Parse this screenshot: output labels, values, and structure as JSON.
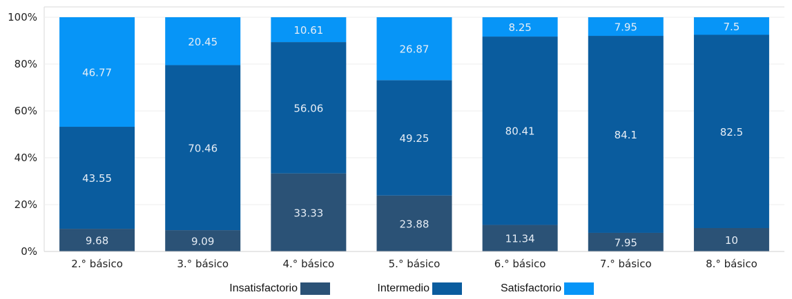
{
  "chart_data": {
    "type": "bar",
    "stacked": true,
    "percent": true,
    "categories": [
      "2.° básico",
      "3.° básico",
      "4.° básico",
      "5.° básico",
      "6.° básico",
      "7.° básico",
      "8.° básico"
    ],
    "series": [
      {
        "name": "Insatisfactorio",
        "color": "#2b5276",
        "values": [
          9.68,
          9.09,
          33.33,
          23.88,
          11.34,
          7.95,
          10
        ]
      },
      {
        "name": "Intermedio",
        "color": "#0a5c9e",
        "values": [
          43.55,
          70.46,
          56.06,
          49.25,
          80.41,
          84.1,
          82.5
        ]
      },
      {
        "name": "Satisfactorio",
        "color": "#0795f7",
        "values": [
          46.77,
          20.45,
          10.61,
          26.87,
          8.25,
          7.95,
          7.5
        ]
      }
    ],
    "ylim": [
      0,
      100
    ],
    "yticks": [
      "0%",
      "20%",
      "40%",
      "60%",
      "80%",
      "100%"
    ],
    "grid": true,
    "legend": "bottom-center"
  }
}
